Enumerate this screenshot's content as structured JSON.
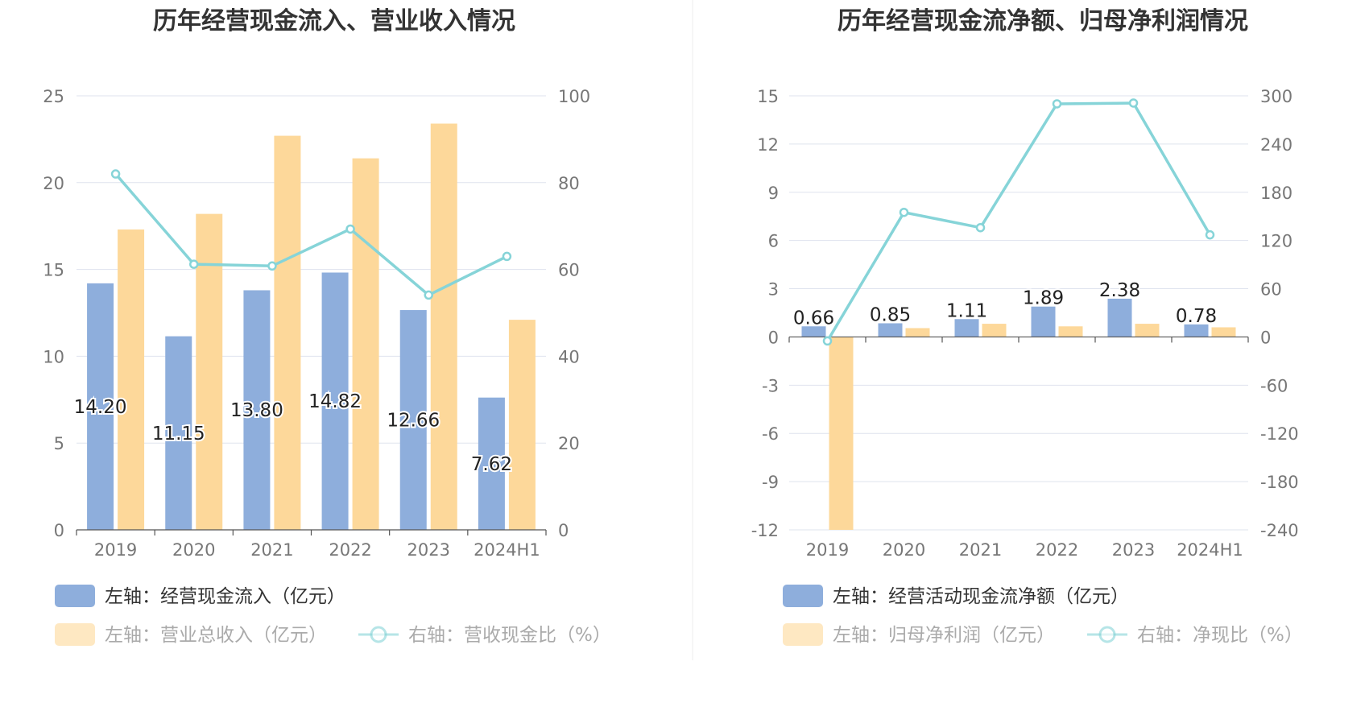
{
  "colors": {
    "bar_primary": "#8eaedc",
    "bar_secondary": "#fdd89a",
    "line": "#86d4d8",
    "grid": "#dfe3ee",
    "axis_text": "#777777",
    "title_text": "#333333",
    "label_text": "#222222",
    "divider": "#eeeeee"
  },
  "chart_data": [
    {
      "type": "bar",
      "title": "历年经营现金流入、营业收入情况",
      "categories": [
        "2019",
        "2020",
        "2021",
        "2022",
        "2023",
        "2024H1"
      ],
      "left_axis": {
        "ticks": [
          0,
          5,
          10,
          15,
          20,
          25
        ],
        "ylim": [
          0,
          25
        ]
      },
      "right_axis": {
        "ticks": [
          0,
          20,
          40,
          60,
          80,
          100
        ],
        "ylim": [
          0,
          100
        ]
      },
      "series": [
        {
          "name": "左轴：经营现金流入（亿元）",
          "kind": "bar",
          "axis": "left",
          "values": [
            14.2,
            11.15,
            13.8,
            14.82,
            12.66,
            7.62
          ],
          "labels": [
            "14.20",
            "11.15",
            "13.80",
            "14.82",
            "12.66",
            "7.62"
          ]
        },
        {
          "name": "左轴：营业总收入（亿元）",
          "kind": "bar",
          "axis": "left",
          "values": [
            17.3,
            18.2,
            22.7,
            21.4,
            23.4,
            12.1
          ]
        },
        {
          "name": "右轴：营收现金比（%）",
          "kind": "line",
          "axis": "right",
          "values": [
            82.0,
            61.2,
            60.8,
            69.3,
            54.1,
            63.0
          ]
        }
      ]
    },
    {
      "type": "bar",
      "title": "历年经营现金流净额、归母净利润情况",
      "categories": [
        "2019",
        "2020",
        "2021",
        "2022",
        "2023",
        "2024H1"
      ],
      "left_axis": {
        "ticks": [
          -12,
          -9,
          -6,
          -3,
          0,
          3,
          6,
          9,
          12,
          15
        ],
        "ylim": [
          -12,
          15
        ]
      },
      "right_axis": {
        "ticks": [
          -240,
          -180,
          -120,
          -60,
          0,
          60,
          120,
          180,
          240,
          300
        ],
        "ylim": [
          -240,
          300
        ]
      },
      "series": [
        {
          "name": "左轴：经营活动现金流净额（亿元）",
          "kind": "bar",
          "axis": "left",
          "values": [
            0.66,
            0.85,
            1.11,
            1.89,
            2.38,
            0.78
          ],
          "labels": [
            "0.66",
            "0.85",
            "1.11",
            "1.89",
            "2.38",
            "0.78"
          ]
        },
        {
          "name": "左轴：归母净利润（亿元）",
          "kind": "bar",
          "axis": "left",
          "values": [
            -12.0,
            0.55,
            0.82,
            0.66,
            0.82,
            0.6
          ]
        },
        {
          "name": "右轴：净现比（%）",
          "kind": "line",
          "axis": "right",
          "values": [
            -5,
            155,
            136,
            290,
            291,
            127
          ]
        }
      ]
    }
  ]
}
